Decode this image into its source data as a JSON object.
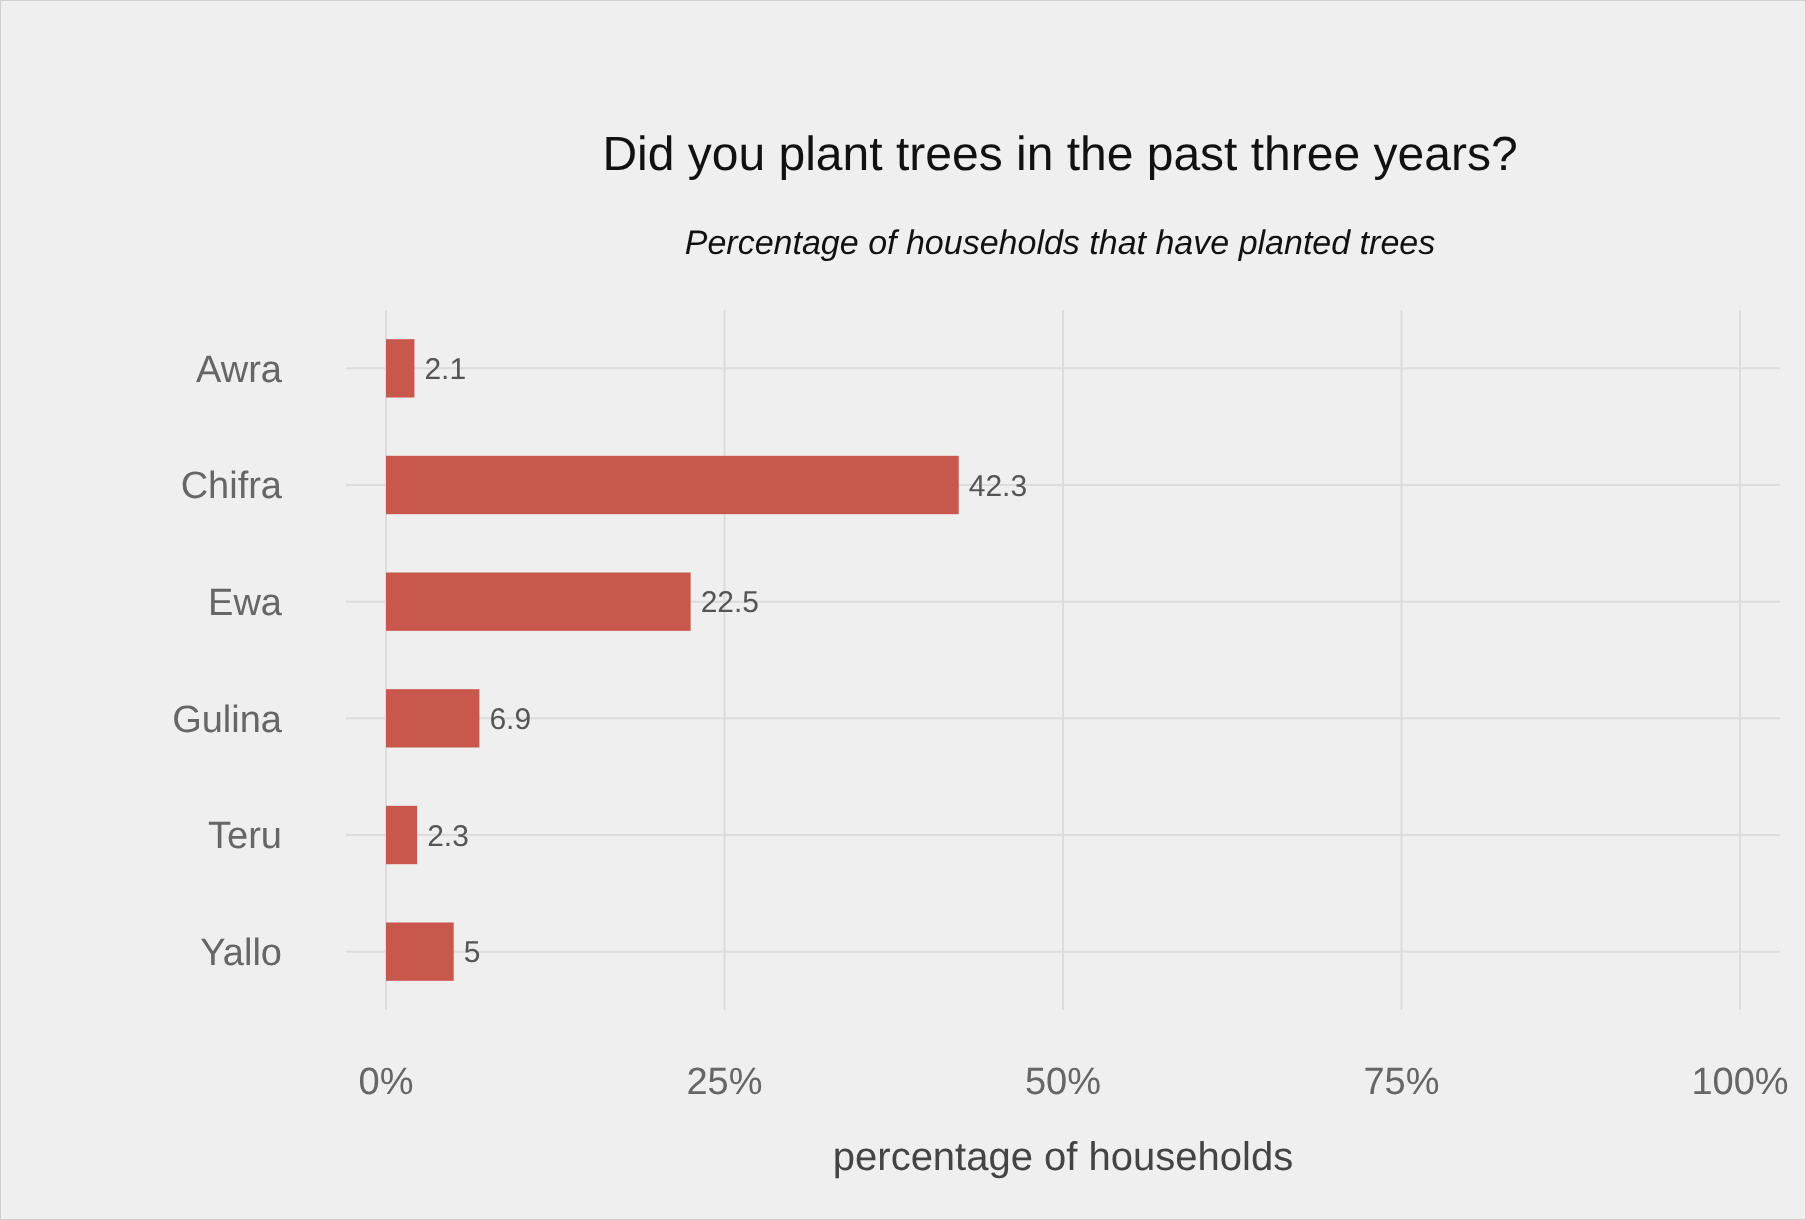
{
  "chart_data": {
    "type": "bar",
    "orientation": "horizontal",
    "title": "Did you plant trees in the past three years?",
    "subtitle": "Percentage of households that have planted trees",
    "xlabel": "percentage of households",
    "categories": [
      "Awra",
      "Chifra",
      "Ewa",
      "Gulina",
      "Teru",
      "Yallo"
    ],
    "values": [
      2.1,
      42.3,
      22.5,
      6.9,
      2.3,
      5
    ],
    "color": "#c9584c",
    "xlim": [
      0,
      100
    ],
    "xticks": [
      {
        "value": 0,
        "label": "0%"
      },
      {
        "value": 25,
        "label": "25%"
      },
      {
        "value": 50,
        "label": "50%"
      },
      {
        "value": 75,
        "label": "75%"
      },
      {
        "value": 100,
        "label": "100%"
      }
    ],
    "grid": true,
    "data_labels": true
  }
}
